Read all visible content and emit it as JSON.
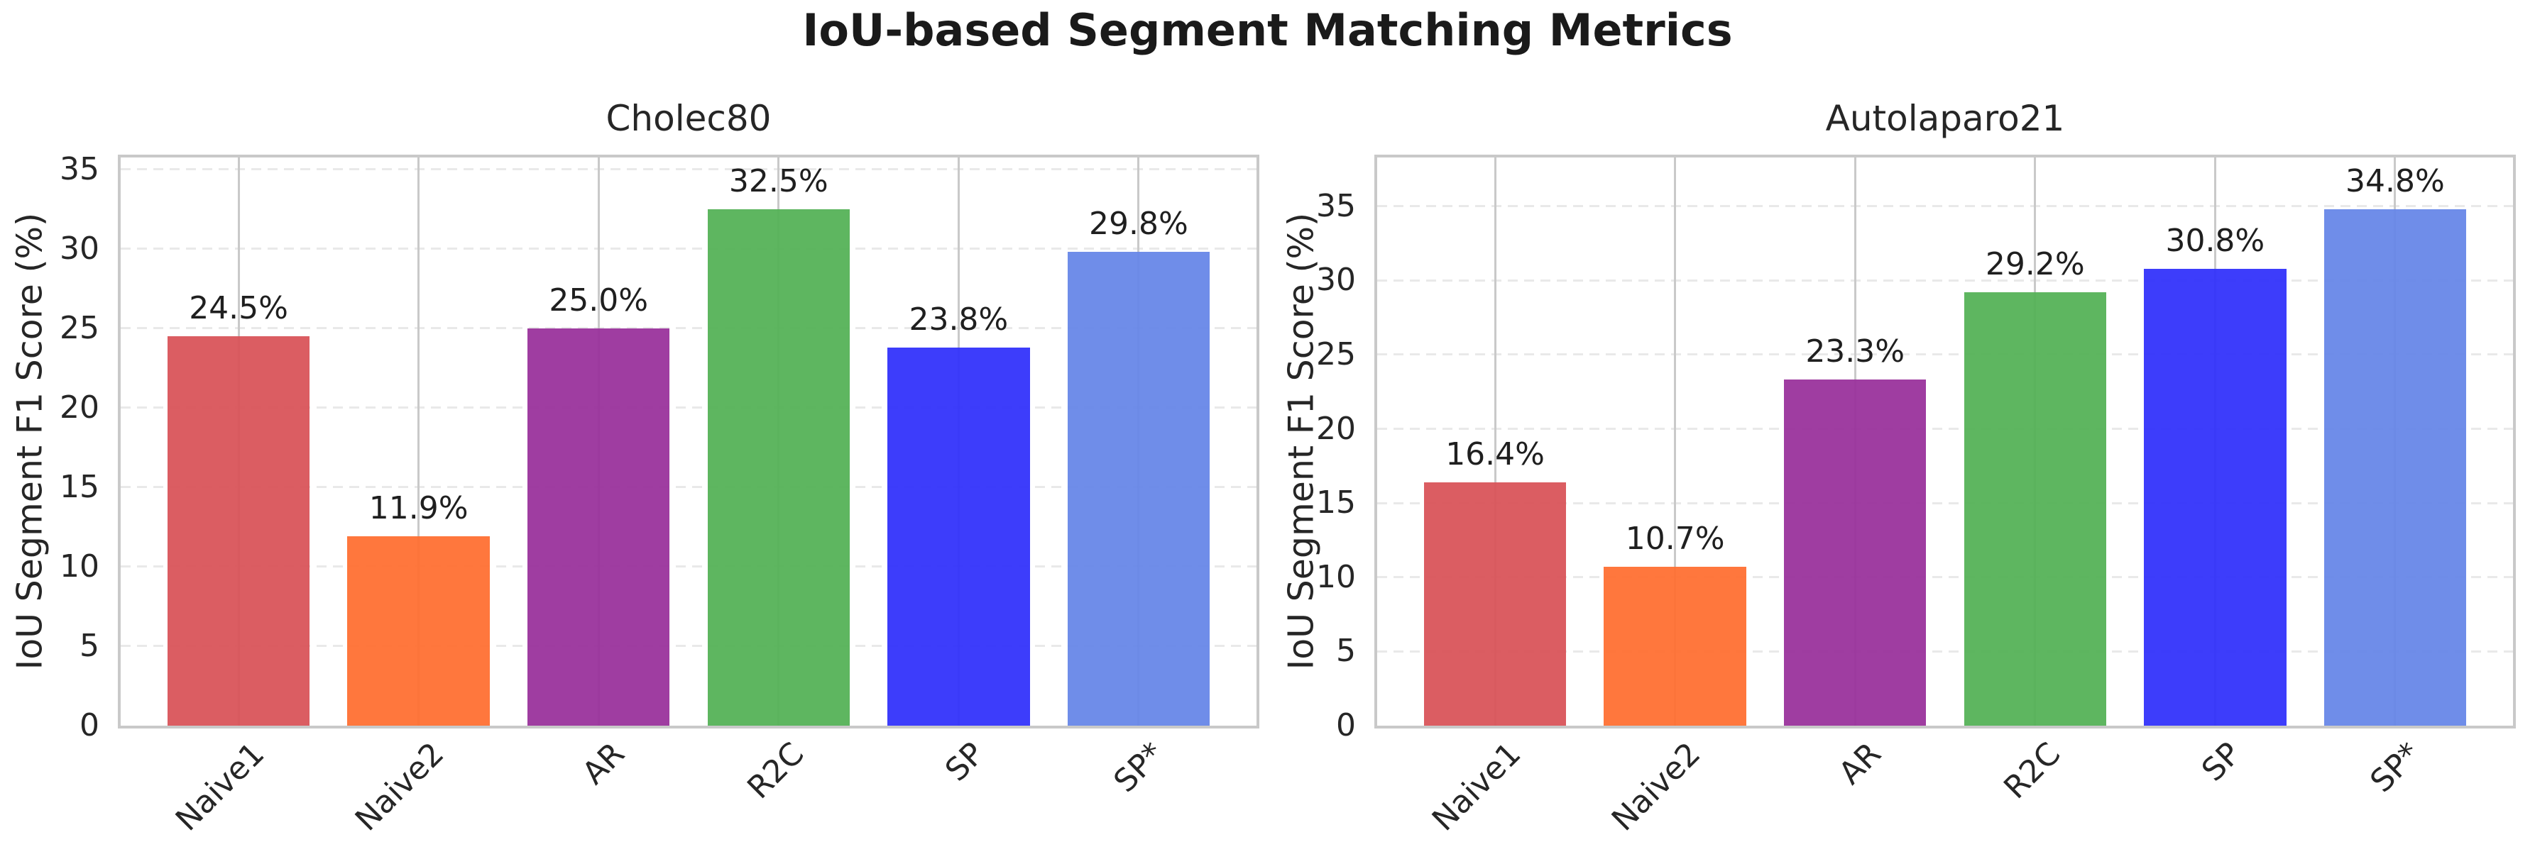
{
  "figure": {
    "suptitle": "IoU-based Segment Matching Metrics"
  },
  "palette": {
    "spine": "#c9c9c9",
    "grid_vertical": "#c9c9c9",
    "grid_horizontal": "#e9e9e9",
    "text": "#262626",
    "value_label_text": "#1f1f1f"
  },
  "chart_data": [
    {
      "type": "bar",
      "title": "Cholec80",
      "ylabel": "IoU Segment F1 Score (%)",
      "categories": [
        "Naive1",
        "Naive2",
        "AR",
        "R2C",
        "SP",
        "SP*"
      ],
      "values": [
        24.5,
        11.9,
        25.0,
        32.5,
        23.8,
        29.8
      ],
      "data_labels": [
        "24.5%",
        "11.9%",
        "25.0%",
        "32.5%",
        "23.8%",
        "29.8%"
      ],
      "bar_colors": [
        "#d9545a",
        "#ff7033",
        "#9a339c",
        "#55b257",
        "#3333fb",
        "#6787e8"
      ],
      "yticks": [
        0,
        5,
        10,
        15,
        20,
        25,
        30,
        35
      ],
      "ytick_labels": [
        "0",
        "5",
        "10",
        "15",
        "20",
        "25",
        "30",
        "35"
      ],
      "ylim": [
        0,
        35.75
      ],
      "grid": "both",
      "legend": "none"
    },
    {
      "type": "bar",
      "title": "Autolaparo21",
      "ylabel": "IoU Segment F1 Score (%)",
      "categories": [
        "Naive1",
        "Naive2",
        "AR",
        "R2C",
        "SP",
        "SP*"
      ],
      "values": [
        16.4,
        10.7,
        23.3,
        29.2,
        30.8,
        34.8
      ],
      "data_labels": [
        "16.4%",
        "10.7%",
        "23.3%",
        "29.2%",
        "30.8%",
        "34.8%"
      ],
      "bar_colors": [
        "#d9545a",
        "#ff7033",
        "#9a339c",
        "#55b257",
        "#3333fb",
        "#6787e8"
      ],
      "yticks": [
        0,
        5,
        10,
        15,
        20,
        25,
        30,
        35
      ],
      "ytick_labels": [
        "0",
        "5",
        "10",
        "15",
        "20",
        "25",
        "30",
        "35"
      ],
      "ylim": [
        0,
        38.28
      ],
      "grid": "both",
      "legend": "none"
    }
  ]
}
